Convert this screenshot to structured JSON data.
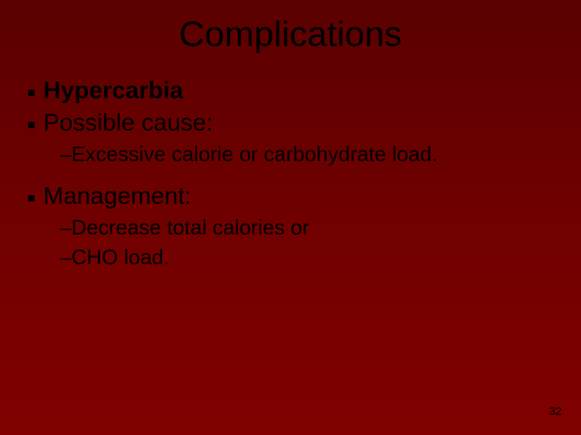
{
  "slide": {
    "title": "Complications",
    "pageNumber": "32",
    "background": {
      "gradient_from": "#5a0000",
      "gradient_to": "#800000"
    },
    "items": [
      {
        "bullet": "■",
        "text": "Hypercarbia",
        "bold": true
      },
      {
        "bullet": "■",
        "text": "Possible cause:",
        "bold": false
      }
    ],
    "sub1": "–Excessive calorie or carbohydrate load.",
    "item3": {
      "bullet": "■",
      "text": "Management:"
    },
    "sub2a": "–Decrease total calories or",
    "sub2b": "–CHO load.",
    "typography": {
      "title_fontsize": 44,
      "lvl1_fontsize": 30,
      "lvl2_fontsize": 26,
      "pagenum_fontsize": 14,
      "text_color": "#000000"
    }
  }
}
